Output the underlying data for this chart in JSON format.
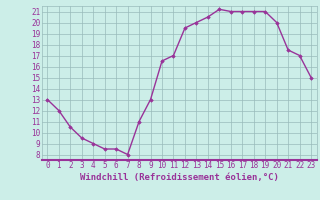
{
  "x": [
    0,
    1,
    2,
    3,
    4,
    5,
    6,
    7,
    8,
    9,
    10,
    11,
    12,
    13,
    14,
    15,
    16,
    17,
    18,
    19,
    20,
    21,
    22,
    23
  ],
  "y": [
    13,
    12,
    10.5,
    9.5,
    9,
    8.5,
    8.5,
    8,
    11,
    13,
    16.5,
    17,
    19.5,
    20,
    20.5,
    21.2,
    21,
    21,
    21,
    21,
    20,
    17.5,
    17,
    15
  ],
  "line_color": "#993399",
  "marker": "D",
  "marker_size": 1.8,
  "linewidth": 1.0,
  "bg_color": "#cceee8",
  "grid_color": "#99bbbb",
  "xlabel": "Windchill (Refroidissement éolien,°C)",
  "xlabel_fontsize": 6.5,
  "xlabel_color": "#993399",
  "tick_label_color": "#993399",
  "tick_fontsize": 5.5,
  "ylim": [
    7.5,
    21.5
  ],
  "yticks": [
    8,
    9,
    10,
    11,
    12,
    13,
    14,
    15,
    16,
    17,
    18,
    19,
    20,
    21
  ],
  "xlim": [
    -0.5,
    23.5
  ],
  "xticks": [
    0,
    1,
    2,
    3,
    4,
    5,
    6,
    7,
    8,
    9,
    10,
    11,
    12,
    13,
    14,
    15,
    16,
    17,
    18,
    19,
    20,
    21,
    22,
    23
  ]
}
